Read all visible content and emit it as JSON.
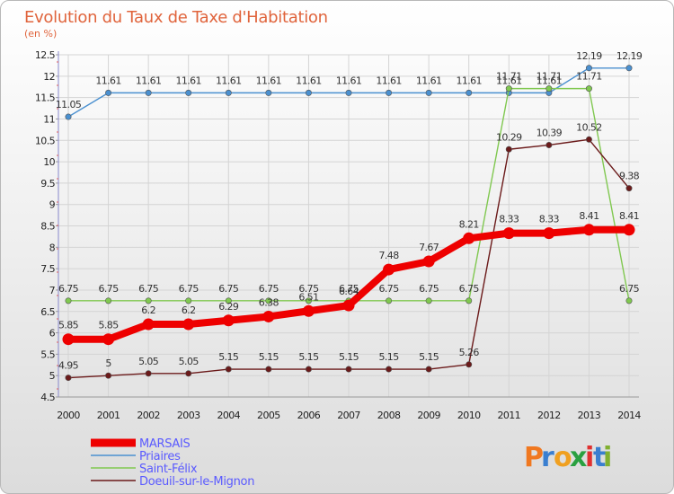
{
  "title": "Evolution du Taux de Taxe d'Habitation",
  "subtitle": "(en %)",
  "logo": {
    "text": "Proxiti",
    "colors": [
      "#f07820",
      "#3a7fd0",
      "#f0a020",
      "#2aa040",
      "#e03030",
      "#3a7fd0",
      "#80b030"
    ]
  },
  "chart_data": {
    "type": "line",
    "x": [
      2000,
      2001,
      2002,
      2003,
      2004,
      2005,
      2006,
      2007,
      2008,
      2009,
      2010,
      2011,
      2012,
      2013,
      2014
    ],
    "ylim": [
      4.5,
      12.5
    ],
    "yticks": [
      4.5,
      5,
      5.5,
      6,
      6.5,
      7,
      7.5,
      8,
      8.5,
      9,
      9.5,
      10,
      10.5,
      11,
      11.5,
      12,
      12.5
    ],
    "ytick_labels": [
      "4.5",
      "5",
      "5.5",
      "6",
      "6.5",
      "7",
      "7.5",
      "8",
      "8.5",
      "9",
      "9.5",
      "10",
      "10.5",
      "11",
      "11.5",
      "12",
      "12.5"
    ],
    "legend_position": "bottom-left",
    "series": [
      {
        "name": "MARSAIS",
        "color": "#ee0000",
        "values": [
          5.85,
          5.85,
          6.2,
          6.2,
          6.29,
          6.38,
          6.51,
          6.64,
          7.48,
          7.67,
          8.21,
          8.33,
          8.33,
          8.41,
          8.41
        ],
        "labels": [
          "5.85",
          "5.85",
          "6.2",
          "6.2",
          "6.29",
          "6.38",
          "6.51",
          "6.64",
          "7.48",
          "7.67",
          "8.21",
          "8.33",
          "8.33",
          "8.41",
          "8.41"
        ]
      },
      {
        "name": "Priaires",
        "color": "#4a90d0",
        "values": [
          11.05,
          11.61,
          11.61,
          11.61,
          11.61,
          11.61,
          11.61,
          11.61,
          11.61,
          11.61,
          11.61,
          11.61,
          11.61,
          12.19,
          12.19
        ],
        "labels": [
          "11.05",
          "11.61",
          "11.61",
          "11.61",
          "11.61",
          "11.61",
          "11.61",
          "11.61",
          "11.61",
          "11.61",
          "11.61",
          "11.61",
          "11.61",
          "12.19",
          "12.19"
        ]
      },
      {
        "name": "Saint-Félix",
        "color": "#80c850",
        "values": [
          6.75,
          6.75,
          6.75,
          6.75,
          6.75,
          6.75,
          6.75,
          6.75,
          6.75,
          6.75,
          6.75,
          11.71,
          11.71,
          11.71,
          6.75
        ],
        "labels": [
          "6.75",
          "6.75",
          "6.75",
          "6.75",
          "6.75",
          "6.75",
          "6.75",
          "6.75",
          "6.75",
          "6.75",
          "6.75",
          "11.71",
          "11.71",
          "11.71",
          "6.75"
        ]
      },
      {
        "name": "Doeuil-sur-le-Mignon",
        "color": "#6b1a1a",
        "values": [
          4.95,
          5,
          5.05,
          5.05,
          5.15,
          5.15,
          5.15,
          5.15,
          5.15,
          5.15,
          5.26,
          10.29,
          10.39,
          10.52,
          9.38
        ],
        "labels": [
          "4.95",
          "5",
          "5.05",
          "5.05",
          "5.15",
          "5.15",
          "5.15",
          "5.15",
          "5.15",
          "5.15",
          "5.26",
          "10.29",
          "10.39",
          "10.52",
          "9.38"
        ]
      }
    ]
  }
}
